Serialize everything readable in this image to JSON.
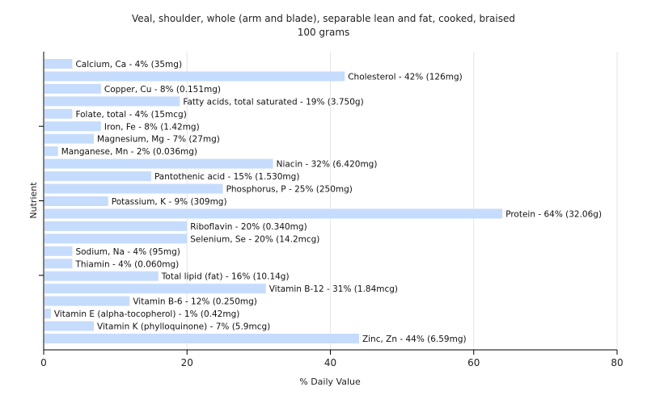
{
  "chart_data": {
    "type": "bar",
    "orientation": "horizontal",
    "title": "Veal, shoulder, whole (arm and blade), separable lean and fat, cooked, braised",
    "subtitle": "100 grams",
    "xlabel": "% Daily Value",
    "ylabel": "Nutrient",
    "xlim": [
      0,
      80
    ],
    "x_ticks": [
      0,
      20,
      40,
      60,
      80
    ],
    "grid": "vertical",
    "bar_color": "#c6dcfc",
    "categories": [
      "Calcium, Ca",
      "Cholesterol",
      "Copper, Cu",
      "Fatty acids, total saturated",
      "Folate, total",
      "Iron, Fe",
      "Magnesium, Mg",
      "Manganese, Mn",
      "Niacin",
      "Pantothenic acid",
      "Phosphorus, P",
      "Potassium, K",
      "Protein",
      "Riboflavin",
      "Selenium, Se",
      "Sodium, Na",
      "Thiamin",
      "Total lipid (fat)",
      "Vitamin B-12",
      "Vitamin B-6",
      "Vitamin E (alpha-tocopherol)",
      "Vitamin K (phylloquinone)",
      "Zinc, Zn"
    ],
    "values": [
      4,
      42,
      8,
      19,
      4,
      8,
      7,
      2,
      32,
      15,
      25,
      9,
      64,
      20,
      20,
      4,
      4,
      16,
      31,
      12,
      1,
      7,
      44
    ],
    "bar_labels": [
      "Calcium, Ca - 4% (35mg)",
      "Cholesterol - 42% (126mg)",
      "Copper, Cu - 8% (0.151mg)",
      "Fatty acids, total saturated - 19% (3.750g)",
      "Folate, total - 4% (15mcg)",
      "Iron, Fe - 8% (1.42mg)",
      "Magnesium, Mg - 7% (27mg)",
      "Manganese, Mn - 2% (0.036mg)",
      "Niacin - 32% (6.420mg)",
      "Pantothenic acid - 15% (1.530mg)",
      "Phosphorus, P - 25% (250mg)",
      "Potassium, K - 9% (309mg)",
      "Protein - 64% (32.06g)",
      "Riboflavin - 20% (0.340mg)",
      "Selenium, Se - 20% (14.2mcg)",
      "Sodium, Na - 4% (95mg)",
      "Thiamin - 4% (0.060mg)",
      "Total lipid (fat) - 16% (10.14g)",
      "Vitamin B-12 - 31% (1.84mcg)",
      "Vitamin B-6 - 12% (0.250mg)",
      "Vitamin E (alpha-tocopherol) - 1% (0.42mg)",
      "Vitamin K (phylloquinone) - 7% (5.9mcg)",
      "Zinc, Zn - 44% (6.59mg)"
    ]
  }
}
